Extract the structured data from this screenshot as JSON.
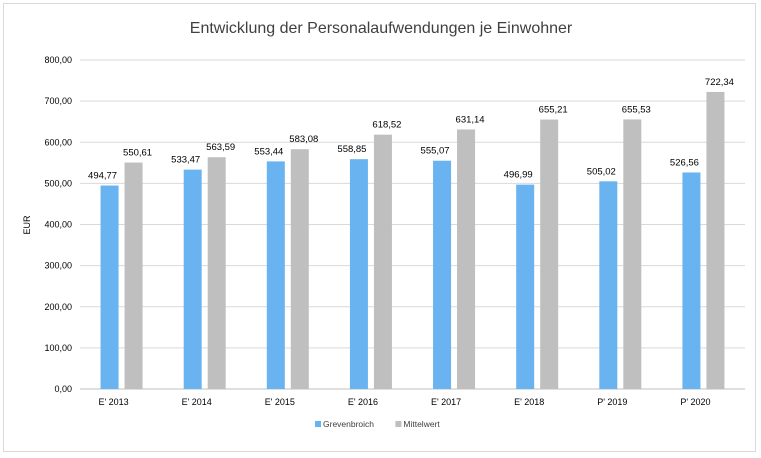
{
  "chart_data": {
    "type": "bar",
    "title": "Entwicklung der Personalaufwendungen je Einwohner",
    "xlabel": "",
    "ylabel": "EUR",
    "ylim": [
      0,
      800
    ],
    "yticks": [
      "0,00",
      "100,00",
      "200,00",
      "300,00",
      "400,00",
      "500,00",
      "600,00",
      "700,00",
      "800,00"
    ],
    "grid": true,
    "legend_position": "bottom",
    "categories": [
      "E' 2013",
      "E' 2014",
      "E' 2015",
      "E' 2016",
      "E' 2017",
      "E' 2018",
      "P' 2019",
      "P' 2020"
    ],
    "series": [
      {
        "name": "Grevenbroich",
        "color": "#69b4f0",
        "values": [
          494.77,
          533.47,
          553.44,
          558.85,
          555.07,
          496.99,
          505.02,
          526.56
        ],
        "labels": [
          "494,77",
          "533,47",
          "553,44",
          "558,85",
          "555,07",
          "496,99",
          "505,02",
          "526,56"
        ]
      },
      {
        "name": "Mittelwert",
        "color": "#bfbfbf",
        "values": [
          550.61,
          563.59,
          583.08,
          618.52,
          631.14,
          655.21,
          655.53,
          722.34
        ],
        "labels": [
          "550,61",
          "563,59",
          "583,08",
          "618,52",
          "631,14",
          "655,21",
          "655,53",
          "722,34"
        ]
      }
    ]
  }
}
